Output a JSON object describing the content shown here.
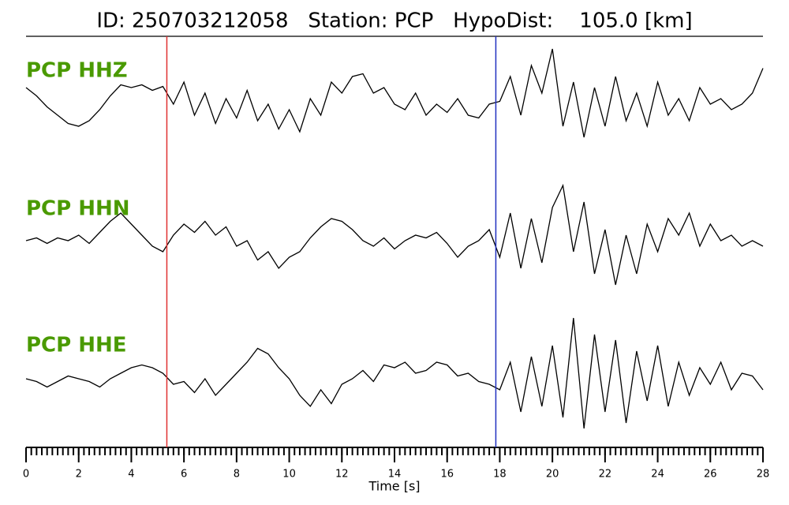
{
  "chart_data": {
    "type": "line",
    "title": "ID: 250703212058   Station: PCP   HypoDist:    105.0 [km]",
    "xlabel": "Time [s]",
    "xlim": [
      0,
      28
    ],
    "xticks": [
      0,
      2,
      4,
      6,
      8,
      10,
      12,
      14,
      16,
      18,
      20,
      22,
      24,
      26,
      28
    ],
    "xminor": 0.2,
    "ylim": [
      -1,
      1
    ],
    "x": [
      0,
      0.4,
      0.8,
      1.2,
      1.6,
      2,
      2.4,
      2.8,
      3.2,
      3.6,
      4,
      4.4,
      4.8,
      5.2,
      5.6,
      6,
      6.4,
      6.8,
      7.2,
      7.6,
      8,
      8.4,
      8.8,
      9.2,
      9.6,
      10,
      10.4,
      10.8,
      11.2,
      11.6,
      12,
      12.4,
      12.8,
      13.2,
      13.6,
      14,
      14.4,
      14.8,
      15.2,
      15.6,
      16,
      16.4,
      16.8,
      17.2,
      17.6,
      18,
      18.4,
      18.8,
      19.2,
      19.6,
      20,
      20.4,
      20.8,
      21.2,
      21.6,
      22,
      22.4,
      22.8,
      23.2,
      23.6,
      24,
      24.4,
      24.8,
      25.2,
      25.6,
      26,
      26.4,
      26.8,
      27.2,
      27.6,
      28
    ],
    "series": [
      {
        "name": "PCP HHZ",
        "color": "#000000",
        "label_color": "#4a9a00",
        "values": [
          0.2,
          0.05,
          -0.15,
          -0.3,
          -0.45,
          -0.5,
          -0.4,
          -0.2,
          0.05,
          0.25,
          0.2,
          0.25,
          0.15,
          0.22,
          -0.1,
          0.3,
          -0.3,
          0.1,
          -0.45,
          0.0,
          -0.35,
          0.15,
          -0.4,
          -0.1,
          -0.55,
          -0.2,
          -0.6,
          0.0,
          -0.3,
          0.3,
          0.1,
          0.4,
          0.45,
          0.1,
          0.2,
          -0.1,
          -0.2,
          0.1,
          -0.3,
          -0.1,
          -0.25,
          0.0,
          -0.3,
          -0.35,
          -0.1,
          -0.05,
          0.4,
          -0.3,
          0.6,
          0.1,
          0.9,
          -0.5,
          0.3,
          -0.7,
          0.2,
          -0.5,
          0.4,
          -0.4,
          0.1,
          -0.5,
          0.3,
          -0.3,
          0.0,
          -0.4,
          0.2,
          -0.1,
          0.0,
          -0.2,
          -0.1,
          0.1,
          0.55
        ]
      },
      {
        "name": "PCP HHN",
        "color": "#000000",
        "label_color": "#4a9a00",
        "values": [
          0.0,
          0.05,
          -0.05,
          0.05,
          0.0,
          0.1,
          -0.05,
          0.15,
          0.35,
          0.5,
          0.3,
          0.1,
          -0.1,
          -0.2,
          0.1,
          0.3,
          0.15,
          0.35,
          0.1,
          0.25,
          -0.1,
          0.0,
          -0.35,
          -0.2,
          -0.5,
          -0.3,
          -0.2,
          0.05,
          0.25,
          0.4,
          0.35,
          0.2,
          0.0,
          -0.1,
          0.05,
          -0.15,
          0.0,
          0.1,
          0.05,
          0.15,
          -0.05,
          -0.3,
          -0.1,
          0.0,
          0.2,
          -0.3,
          0.5,
          -0.5,
          0.4,
          -0.4,
          0.6,
          1.0,
          -0.2,
          0.7,
          -0.6,
          0.2,
          -0.8,
          0.1,
          -0.6,
          0.3,
          -0.2,
          0.4,
          0.1,
          0.5,
          -0.1,
          0.3,
          0.0,
          0.1,
          -0.1,
          0.0,
          -0.1
        ]
      },
      {
        "name": "PCP HHE",
        "color": "#000000",
        "label_color": "#4a9a00",
        "values": [
          0.0,
          -0.05,
          -0.15,
          -0.05,
          0.05,
          0.0,
          -0.05,
          -0.15,
          0.0,
          0.1,
          0.2,
          0.25,
          0.2,
          0.1,
          -0.1,
          -0.05,
          -0.25,
          0.0,
          -0.3,
          -0.1,
          0.1,
          0.3,
          0.55,
          0.45,
          0.2,
          0.0,
          -0.3,
          -0.5,
          -0.2,
          -0.45,
          -0.1,
          0.0,
          0.15,
          -0.05,
          0.25,
          0.2,
          0.3,
          0.1,
          0.15,
          0.3,
          0.25,
          0.05,
          0.1,
          -0.05,
          -0.1,
          -0.2,
          0.3,
          -0.6,
          0.4,
          -0.5,
          0.6,
          -0.7,
          1.1,
          -0.9,
          0.8,
          -0.6,
          0.7,
          -0.8,
          0.5,
          -0.4,
          0.6,
          -0.5,
          0.3,
          -0.3,
          0.2,
          -0.1,
          0.3,
          -0.2,
          0.1,
          0.05,
          -0.2
        ]
      }
    ],
    "markers": [
      {
        "x": 5.35,
        "color": "#e03030"
      },
      {
        "x": 17.85,
        "color": "#2030c0"
      }
    ]
  }
}
